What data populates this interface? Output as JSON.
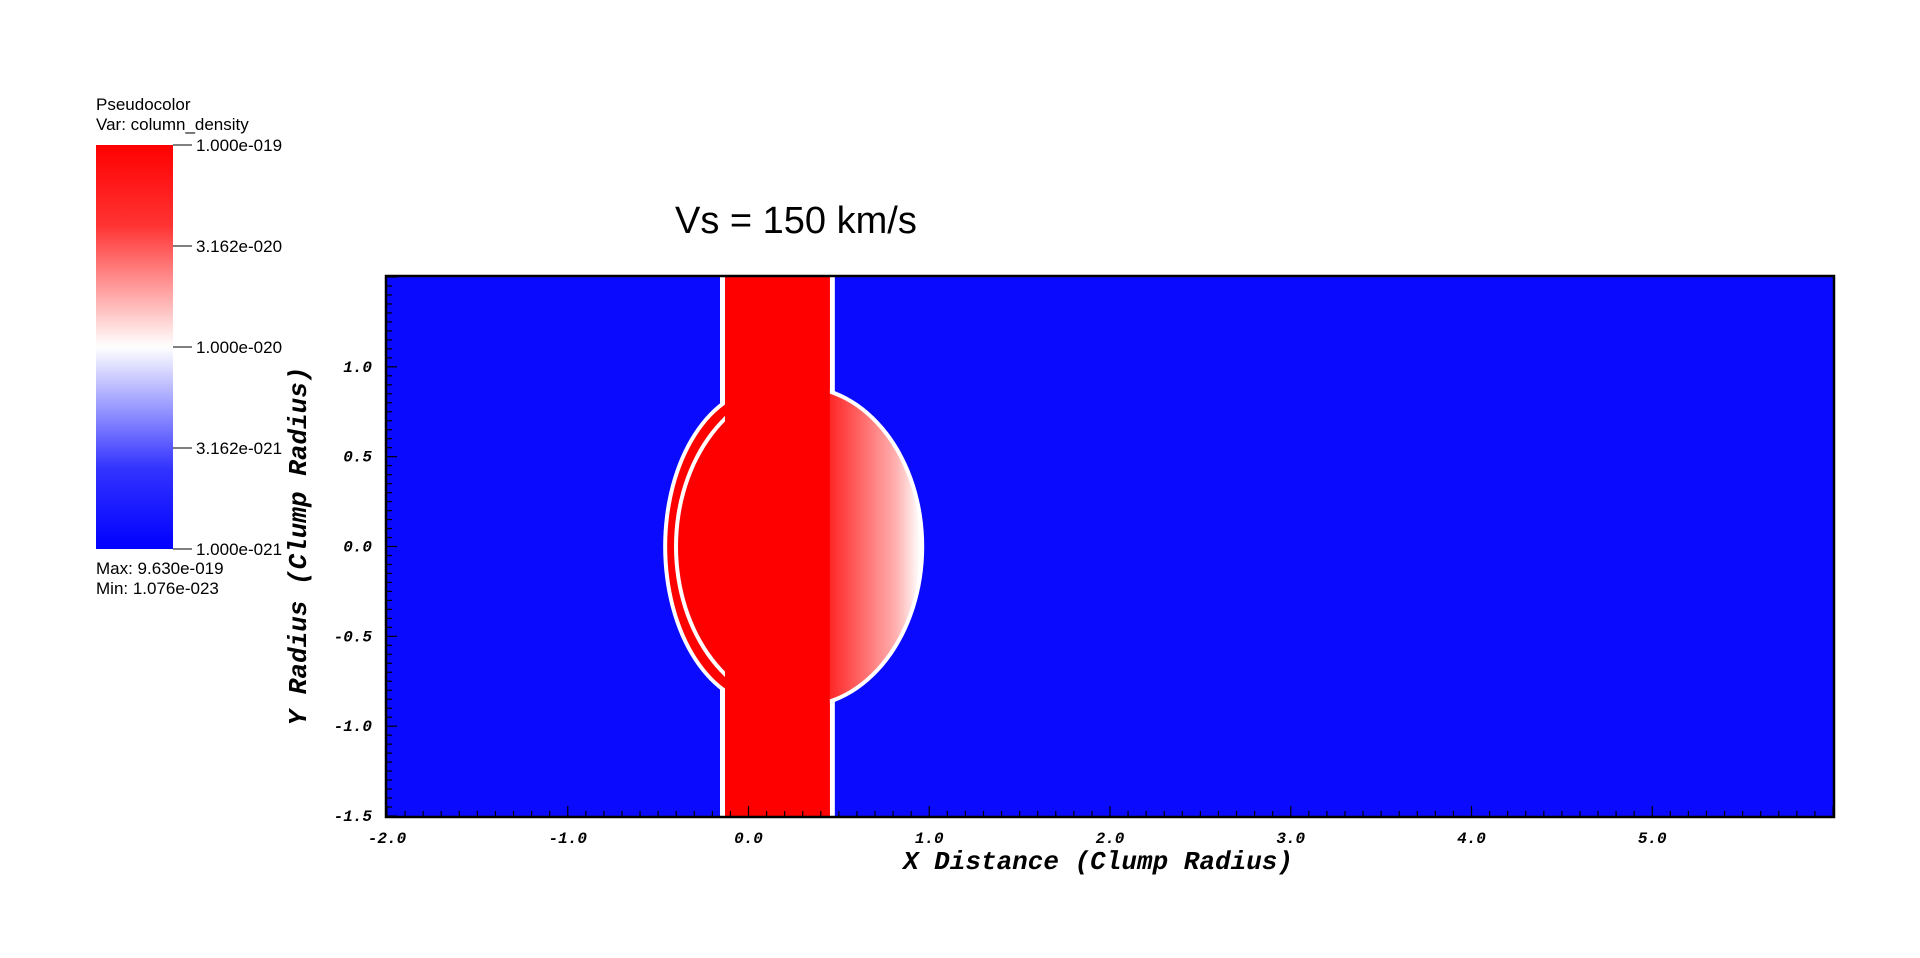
{
  "legend": {
    "plot_type": "Pseudocolor",
    "var_label": "Var: column_density",
    "ticks": [
      "1.000e-019",
      "3.162e-020",
      "1.000e-020",
      "3.162e-021",
      "1.000e-021"
    ],
    "max_label": "Max:  9.630e-019",
    "min_label": "Min:  1.076e-023",
    "colors": {
      "high": "#ff0000",
      "mid": "#ffffff",
      "low": "#0000ff"
    }
  },
  "chart_data": {
    "type": "heatmap",
    "title": "Vs = 150 km/s",
    "xlabel": "X Distance (Clump Radius)",
    "ylabel": "Y Radius (Clump Radius)",
    "xlim": [
      -2.0,
      6.0
    ],
    "ylim": [
      -1.5,
      1.5
    ],
    "x_ticks": [
      "-2.0",
      "-1.0",
      "0.0",
      "1.0",
      "2.0",
      "3.0",
      "4.0",
      "5.0"
    ],
    "y_ticks": [
      "-1.5",
      "-1.0",
      "-0.5",
      "0.0",
      "0.5",
      "1.0"
    ],
    "log_scale": true,
    "background_color": "#0a0aff",
    "features": [
      {
        "name": "slab",
        "x_range": [
          -0.13,
          0.45
        ],
        "y_range": [
          -1.5,
          1.5
        ],
        "color": "#ff0000"
      },
      {
        "name": "clump-left-arc",
        "center": [
          0.1,
          0.0
        ],
        "radius_x": 0.55,
        "radius_y": 0.87,
        "color": "#ff0000"
      },
      {
        "name": "clump-right-cap",
        "center": [
          0.28,
          0.0
        ],
        "radius_x": 0.67,
        "radius_y": 0.88,
        "color": "#ff0000"
      }
    ]
  }
}
